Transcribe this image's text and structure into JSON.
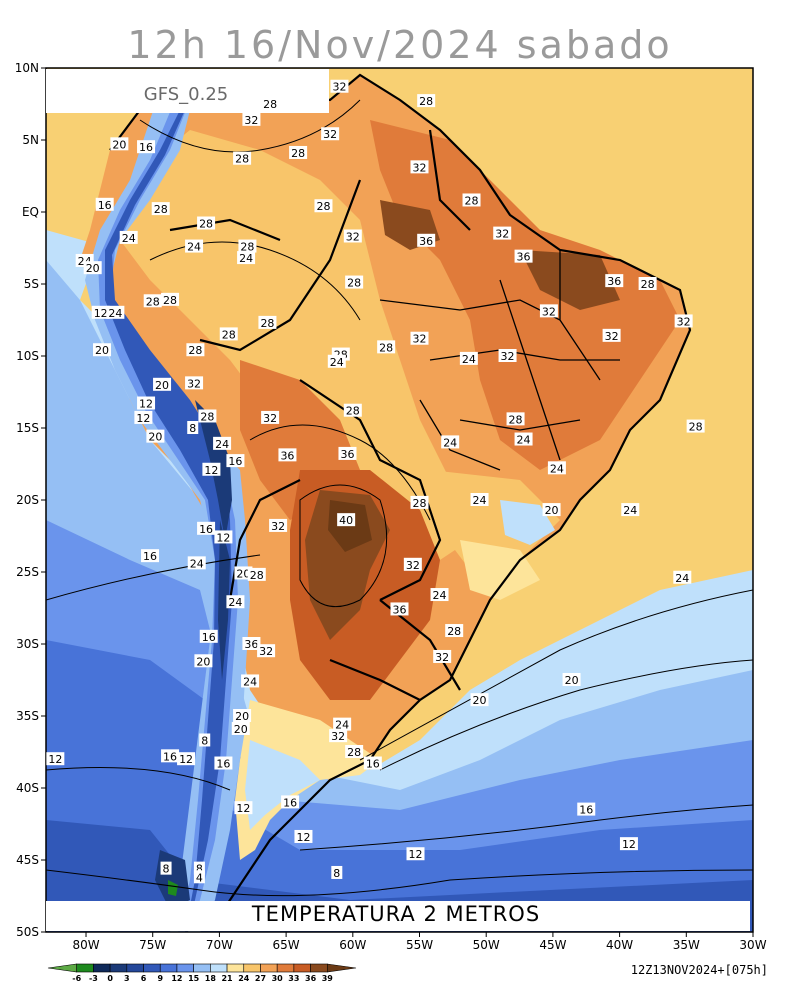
{
  "title": "12h 16/Nov/2024 sabado",
  "model_label": "GFS_0.25",
  "variable_label": "TEMPERATURA 2 METROS",
  "init_stamp": "12Z13NOV2024+[075h]",
  "lat_ticks": [
    {
      "lat": 10,
      "label": "10N"
    },
    {
      "lat": 5,
      "label": "5N"
    },
    {
      "lat": 0,
      "label": "EQ"
    },
    {
      "lat": -5,
      "label": "5S"
    },
    {
      "lat": -10,
      "label": "10S"
    },
    {
      "lat": -15,
      "label": "15S"
    },
    {
      "lat": -20,
      "label": "20S"
    },
    {
      "lat": -25,
      "label": "25S"
    },
    {
      "lat": -30,
      "label": "30S"
    },
    {
      "lat": -35,
      "label": "35S"
    },
    {
      "lat": -40,
      "label": "40S"
    },
    {
      "lat": -45,
      "label": "45S"
    },
    {
      "lat": -50,
      "label": "50S"
    }
  ],
  "lon_ticks": [
    {
      "lon": -80,
      "label": "80W"
    },
    {
      "lon": -75,
      "label": "75W"
    },
    {
      "lon": -70,
      "label": "70W"
    },
    {
      "lon": -65,
      "label": "65W"
    },
    {
      "lon": -60,
      "label": "60W"
    },
    {
      "lon": -55,
      "label": "55W"
    },
    {
      "lon": -50,
      "label": "50W"
    },
    {
      "lon": -45,
      "label": "45W"
    },
    {
      "lon": -40,
      "label": "40W"
    },
    {
      "lon": -35,
      "label": "35W"
    },
    {
      "lon": -30,
      "label": "30W"
    }
  ],
  "colorbar": {
    "labels": [
      "-6",
      "-3",
      "0",
      "3",
      "6",
      "9",
      "12",
      "15",
      "18",
      "21",
      "24",
      "27",
      "30",
      "33",
      "36",
      "39"
    ],
    "colors": [
      "#5daa45",
      "#1e8a1e",
      "#0f2a5a",
      "#1b3a78",
      "#24479a",
      "#3158b8",
      "#4873d8",
      "#6a94ec",
      "#95bff4",
      "#bfe0fb",
      "#fde49a",
      "#f8c56a",
      "#f2a256",
      "#e07b3a",
      "#c85c24",
      "#8a4a1e",
      "#6b3a15"
    ]
  },
  "contour_labels": [
    {
      "v": "32",
      "lon": -61,
      "lat": 8.7
    },
    {
      "v": "28",
      "lon": -54.5,
      "lat": 7.7
    },
    {
      "v": "28",
      "lon": -66.2,
      "lat": 7.5
    },
    {
      "v": "32",
      "lon": -67.6,
      "lat": 6.4
    },
    {
      "v": "32",
      "lon": -61.7,
      "lat": 5.4
    },
    {
      "v": "20",
      "lon": -77.5,
      "lat": 4.7
    },
    {
      "v": "16",
      "lon": -75.5,
      "lat": 4.5
    },
    {
      "v": "28",
      "lon": -64.1,
      "lat": 4.1
    },
    {
      "v": "28",
      "lon": -68.3,
      "lat": 3.7
    },
    {
      "v": "32",
      "lon": -55,
      "lat": 3.1
    },
    {
      "v": "16",
      "lon": -78.6,
      "lat": 0.5
    },
    {
      "v": "28",
      "lon": -74.4,
      "lat": 0.2
    },
    {
      "v": "28",
      "lon": -62.2,
      "lat": 0.4
    },
    {
      "v": "28",
      "lon": -51.1,
      "lat": 0.8
    },
    {
      "v": "28",
      "lon": -71,
      "lat": -0.8
    },
    {
      "v": "32",
      "lon": -60.0,
      "lat": -1.7
    },
    {
      "v": "36",
      "lon": -54.5,
      "lat": -2.0
    },
    {
      "v": "32",
      "lon": -48.8,
      "lat": -1.5
    },
    {
      "v": "24",
      "lon": -76.8,
      "lat": -1.8
    },
    {
      "v": "24",
      "lon": -71.9,
      "lat": -2.4
    },
    {
      "v": "28",
      "lon": -67.9,
      "lat": -2.4
    },
    {
      "v": "36",
      "lon": -47.2,
      "lat": -3.1
    },
    {
      "v": "24",
      "lon": -80.1,
      "lat": -3.4
    },
    {
      "v": "20",
      "lon": -79.5,
      "lat": -3.9
    },
    {
      "v": "24",
      "lon": -68.0,
      "lat": -3.2
    },
    {
      "v": "28",
      "lon": -59.9,
      "lat": -4.9
    },
    {
      "v": "36",
      "lon": -40.4,
      "lat": -4.8
    },
    {
      "v": "28",
      "lon": -37.9,
      "lat": -5.0
    },
    {
      "v": "28",
      "lon": -75.0,
      "lat": -6.2
    },
    {
      "v": "28",
      "lon": -73.7,
      "lat": -6.1
    },
    {
      "v": "32",
      "lon": -45.3,
      "lat": -6.9
    },
    {
      "v": "12",
      "lon": -78.9,
      "lat": -7.0
    },
    {
      "v": "24",
      "lon": -77.8,
      "lat": -7.0
    },
    {
      "v": "28",
      "lon": -66.4,
      "lat": -7.7
    },
    {
      "v": "32",
      "lon": -35.2,
      "lat": -7.6
    },
    {
      "v": "28",
      "lon": -69.3,
      "lat": -8.5
    },
    {
      "v": "32",
      "lon": -55.0,
      "lat": -8.8
    },
    {
      "v": "32",
      "lon": -40.6,
      "lat": -8.6
    },
    {
      "v": "28",
      "lon": -71.8,
      "lat": -9.6
    },
    {
      "v": "28",
      "lon": -57.5,
      "lat": -9.4
    },
    {
      "v": "20",
      "lon": -78.8,
      "lat": -9.6
    },
    {
      "v": "28",
      "lon": -60.9,
      "lat": -9.9
    },
    {
      "v": "24",
      "lon": -51.3,
      "lat": -10.2
    },
    {
      "v": "32",
      "lon": -48.4,
      "lat": -10.0
    },
    {
      "v": "24",
      "lon": -61.2,
      "lat": -10.4
    },
    {
      "v": "20",
      "lon": -74.3,
      "lat": -12.0
    },
    {
      "v": "32",
      "lon": -71.9,
      "lat": -11.9
    },
    {
      "v": "12",
      "lon": -75.5,
      "lat": -13.3
    },
    {
      "v": "12",
      "lon": -75.7,
      "lat": -14.3
    },
    {
      "v": "28",
      "lon": -70.9,
      "lat": -14.2
    },
    {
      "v": "32",
      "lon": -66.2,
      "lat": -14.3
    },
    {
      "v": "28",
      "lon": -60.0,
      "lat": -13.8
    },
    {
      "v": "28",
      "lon": -47.8,
      "lat": -14.4
    },
    {
      "v": "28",
      "lon": -34.3,
      "lat": -14.9
    },
    {
      "v": "8",
      "lon": -72.0,
      "lat": -15.0
    },
    {
      "v": "20",
      "lon": -74.8,
      "lat": -15.6
    },
    {
      "v": "24",
      "lon": -69.8,
      "lat": -16.1
    },
    {
      "v": "24",
      "lon": -47.2,
      "lat": -15.8
    },
    {
      "v": "24",
      "lon": -52.7,
      "lat": -16.0
    },
    {
      "v": "36",
      "lon": -64.9,
      "lat": -16.9
    },
    {
      "v": "36",
      "lon": -60.4,
      "lat": -16.8
    },
    {
      "v": "16",
      "lon": -68.8,
      "lat": -17.3
    },
    {
      "v": "12",
      "lon": -70.6,
      "lat": -17.9
    },
    {
      "v": "24",
      "lon": -44.7,
      "lat": -17.8
    },
    {
      "v": "28",
      "lon": -55.0,
      "lat": -20.2
    },
    {
      "v": "24",
      "lon": -50.5,
      "lat": -20.0
    },
    {
      "v": "20",
      "lon": -45.1,
      "lat": -20.7
    },
    {
      "v": "24",
      "lon": -39.2,
      "lat": -20.7
    },
    {
      "v": "40",
      "lon": -60.5,
      "lat": -21.4
    },
    {
      "v": "32",
      "lon": -65.6,
      "lat": -21.8
    },
    {
      "v": "16",
      "lon": -71.0,
      "lat": -22.0
    },
    {
      "v": "12",
      "lon": -69.7,
      "lat": -22.6
    },
    {
      "v": "16",
      "lon": -75.2,
      "lat": -23.9
    },
    {
      "v": "24",
      "lon": -71.7,
      "lat": -24.4
    },
    {
      "v": "20",
      "lon": -68.2,
      "lat": -25.1
    },
    {
      "v": "28",
      "lon": -67.2,
      "lat": -25.2
    },
    {
      "v": "32",
      "lon": -55.5,
      "lat": -24.5
    },
    {
      "v": "24",
      "lon": -35.3,
      "lat": -25.4
    },
    {
      "v": "24",
      "lon": -53.5,
      "lat": -26.6
    },
    {
      "v": "24",
      "lon": -68.8,
      "lat": -27.1
    },
    {
      "v": "36",
      "lon": -56.5,
      "lat": -27.6
    },
    {
      "v": "28",
      "lon": -52.4,
      "lat": -29.1
    },
    {
      "v": "16",
      "lon": -70.8,
      "lat": -29.5
    },
    {
      "v": "36",
      "lon": -67.6,
      "lat": -30.0
    },
    {
      "v": "32",
      "lon": -66.5,
      "lat": -30.5
    },
    {
      "v": "32",
      "lon": -53.3,
      "lat": -30.9
    },
    {
      "v": "20",
      "lon": -71.2,
      "lat": -31.2
    },
    {
      "v": "20",
      "lon": -43.6,
      "lat": -32.5
    },
    {
      "v": "24",
      "lon": -67.7,
      "lat": -32.6
    },
    {
      "v": "20",
      "lon": -50.5,
      "lat": -33.9
    },
    {
      "v": "20",
      "lon": -68.3,
      "lat": -35.0
    },
    {
      "v": "24",
      "lon": -60.8,
      "lat": -35.6
    },
    {
      "v": "32",
      "lon": -61.1,
      "lat": -36.4
    },
    {
      "v": "20",
      "lon": -68.4,
      "lat": -35.9
    },
    {
      "v": "8",
      "lon": -71.1,
      "lat": -36.7
    },
    {
      "v": "28",
      "lon": -59.9,
      "lat": -37.5
    },
    {
      "v": "12",
      "lon": -82.3,
      "lat": -38.0
    },
    {
      "v": "16",
      "lon": -73.7,
      "lat": -37.8
    },
    {
      "v": "12",
      "lon": -72.5,
      "lat": -38.0
    },
    {
      "v": "16",
      "lon": -69.7,
      "lat": -38.3
    },
    {
      "v": "16",
      "lon": -58.5,
      "lat": -38.3
    },
    {
      "v": "16",
      "lon": -64.7,
      "lat": -41.0
    },
    {
      "v": "12",
      "lon": -68.2,
      "lat": -41.4
    },
    {
      "v": "16",
      "lon": -42.5,
      "lat": -41.5
    },
    {
      "v": "12",
      "lon": -63.7,
      "lat": -43.4
    },
    {
      "v": "12",
      "lon": -39.3,
      "lat": -43.9
    },
    {
      "v": "12",
      "lon": -55.3,
      "lat": -44.6
    },
    {
      "v": "8",
      "lon": -74.0,
      "lat": -45.6
    },
    {
      "v": "8",
      "lon": -71.5,
      "lat": -45.6
    },
    {
      "v": "4",
      "lon": -71.5,
      "lat": -46.2
    },
    {
      "v": "8",
      "lon": -61.2,
      "lat": -45.9
    }
  ]
}
